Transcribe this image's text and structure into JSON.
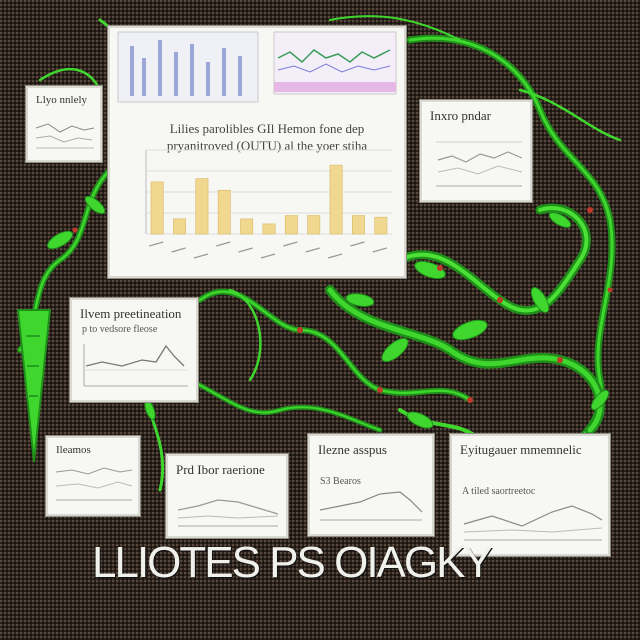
{
  "image": {
    "caption": "LLIOTES PS OIAGKY",
    "colors": {
      "background": "#2a211c",
      "vine_green": "#3fd62e",
      "vine_dark": "#1f8f1a",
      "bud_red": "#c0392b",
      "bar_fill": "#f0d890",
      "card_bg": "#f7f7f4"
    },
    "main_panel": {
      "headline_line1": "Lilies parolibles GIl Hemon fone dep",
      "headline_line2": "pryanitroved (OUTU) al the yoer stiha"
    },
    "panels": [
      {
        "title": "Llyo nnlely",
        "subtitle": ""
      },
      {
        "title": "Inxro pndar",
        "subtitle": ""
      },
      {
        "title": "Ilvem preetineation",
        "subtitle": "p to vedsore fleose"
      },
      {
        "title": "Ileamos",
        "subtitle": ""
      },
      {
        "title": "Prd Ibor raerione",
        "subtitle": ""
      },
      {
        "title": "Ilezne asspus",
        "subtitle": "S3 Bearos"
      },
      {
        "title": "Eyitugauer mmemnelic",
        "subtitle": "A tiled saortreetoc"
      }
    ]
  },
  "chart_data": {
    "type": "bar",
    "categories": [
      "",
      "",
      "",
      "",
      "",
      "",
      "",
      "",
      "",
      "",
      ""
    ],
    "values": [
      6.2,
      1.8,
      6.6,
      5.2,
      1.8,
      1.2,
      2.2,
      2.2,
      8.2,
      2.2,
      2.0
    ],
    "ylim": [
      0,
      10
    ],
    "grid": true
  }
}
